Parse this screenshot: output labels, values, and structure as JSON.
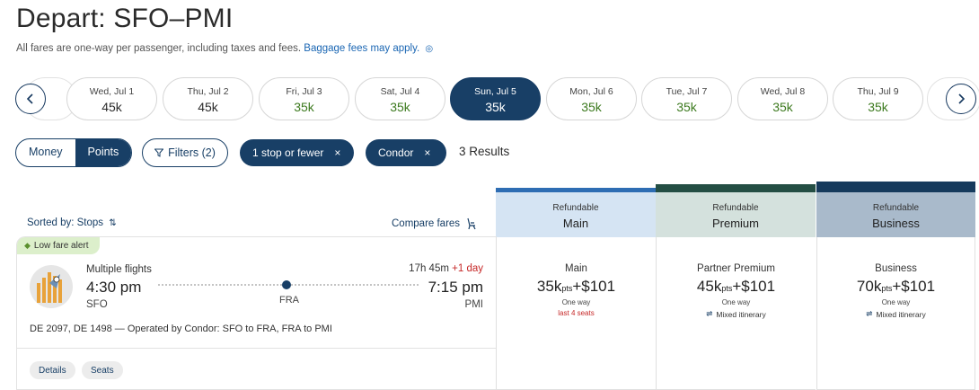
{
  "header": {
    "title": "Depart: SFO–PMI",
    "subtitle": "All fares are one-way per passenger, including taxes and fees.",
    "baggage_link": "Baggage fees may apply."
  },
  "dates": [
    {
      "label": "Wed, Jul 1",
      "price": "45k",
      "style": "normal"
    },
    {
      "label": "Thu, Jul 2",
      "price": "45k",
      "style": "normal"
    },
    {
      "label": "Fri, Jul 3",
      "price": "35k",
      "style": "green"
    },
    {
      "label": "Sat, Jul 4",
      "price": "35k",
      "style": "green"
    },
    {
      "label": "Sun, Jul 5",
      "price": "35k",
      "style": "active"
    },
    {
      "label": "Mon, Jul 6",
      "price": "35k",
      "style": "green"
    },
    {
      "label": "Tue, Jul 7",
      "price": "35k",
      "style": "green"
    },
    {
      "label": "Wed, Jul 8",
      "price": "35k",
      "style": "green"
    },
    {
      "label": "Thu, Jul 9",
      "price": "35k",
      "style": "green"
    }
  ],
  "filters": {
    "money_label": "Money",
    "points_label": "Points",
    "filters_label": "Filters (2)",
    "chip_stops": "1 stop or fewer",
    "chip_carrier": "Condor",
    "chip_remove": "×",
    "results": "3 Results"
  },
  "list": {
    "sorted_label": "Sorted by: Stops",
    "compare_label": "Compare fares"
  },
  "fare_headers": [
    {
      "refund": "Refundable",
      "cabin": "Main"
    },
    {
      "refund": "Refundable",
      "cabin": "Premium"
    },
    {
      "refund": "Refundable",
      "cabin": "Business"
    }
  ],
  "flight": {
    "alert": "Low fare alert",
    "type_label": "Multiple flights",
    "depart_time": "4:30 pm",
    "depart_airport": "SFO",
    "stop_airport": "FRA",
    "duration": "17h 45m",
    "plus_day": "+1 day",
    "arrive_time": "7:15 pm",
    "arrive_airport": "PMI",
    "operated": "DE 2097, DE 1498 — Operated by Condor: SFO to FRA, FRA to PMI",
    "details_label": "Details",
    "seats_label": "Seats"
  },
  "fares": [
    {
      "name": "Main",
      "points": "35k",
      "pts_unit": "pts",
      "cash": "+$101",
      "oneway": "One way",
      "note": "last 4 seats"
    },
    {
      "name": "Partner Premium",
      "points": "45k",
      "pts_unit": "pts",
      "cash": "+$101",
      "oneway": "One way",
      "note": "Mixed itinerary"
    },
    {
      "name": "Business",
      "points": "70k",
      "pts_unit": "pts",
      "cash": "+$101",
      "oneway": "One way",
      "note": "Mixed itinerary"
    }
  ],
  "colors": {
    "navy": "#183f66",
    "green_price": "#3d7a1f",
    "alert_red": "#c62828",
    "link_blue": "#1a66b3"
  }
}
